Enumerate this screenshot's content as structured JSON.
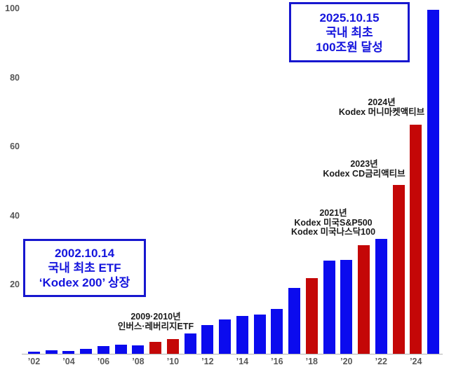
{
  "chart_data": {
    "type": "bar",
    "title": "",
    "xlabel": "",
    "ylabel": "",
    "unit": "조원",
    "x": [
      2002,
      2003,
      2004,
      2005,
      2006,
      2007,
      2008,
      2009,
      2010,
      2011,
      2012,
      2013,
      2014,
      2015,
      2016,
      2017,
      2018,
      2019,
      2020,
      2021,
      2022,
      2023,
      2024,
      2025
    ],
    "values": [
      0.7,
      1.1,
      0.9,
      1.4,
      2.3,
      2.7,
      2.4,
      3.5,
      4.3,
      5.8,
      8.4,
      10.0,
      10.9,
      11.3,
      12.9,
      19.1,
      21.9,
      27.0,
      27.2,
      31.4,
      33.2,
      48.9,
      66.3,
      99.5
    ],
    "red_years": [
      2009,
      2010,
      2018,
      2021,
      2023,
      2024
    ],
    "colors": {
      "blue": "#0b0bee",
      "red": "#c40707"
    },
    "y_ticks": [
      20,
      40,
      60,
      80,
      100
    ],
    "x_tick_years": [
      2002,
      2004,
      2006,
      2008,
      2010,
      2012,
      2014,
      2016,
      2018,
      2020,
      2022,
      2024
    ],
    "x_tick_labels": [
      "’02",
      "’04",
      "’06",
      "’08",
      "’10",
      "’12",
      "’14",
      "’16",
      "’18",
      "’20",
      "’22",
      "’24"
    ],
    "ylim": [
      0,
      100
    ],
    "grid": false,
    "legend": false,
    "axis_label_color": "#595959",
    "baseline_color": "#b3b3b3"
  },
  "annotations": {
    "box_2025": {
      "lines": [
        "2025.10.15",
        "국내 최초",
        "100조원 달성"
      ]
    },
    "box_2002": {
      "lines": [
        "2002.10.14",
        "국내 최초 ETF",
        "‘Kodex 200’ 상장"
      ]
    },
    "callout_2009": {
      "lines": [
        "2009·2010년",
        "인버스·레버리지ETF"
      ]
    },
    "callout_2021": {
      "lines": [
        "2021년",
        "Kodex 미국S&P500",
        "Kodex 미국나스닥100"
      ]
    },
    "callout_2023": {
      "lines": [
        "2023년",
        "Kodex CD금리액티브"
      ]
    },
    "callout_2024": {
      "lines": [
        "2024년",
        "Kodex 머니마켓액티브"
      ]
    }
  }
}
